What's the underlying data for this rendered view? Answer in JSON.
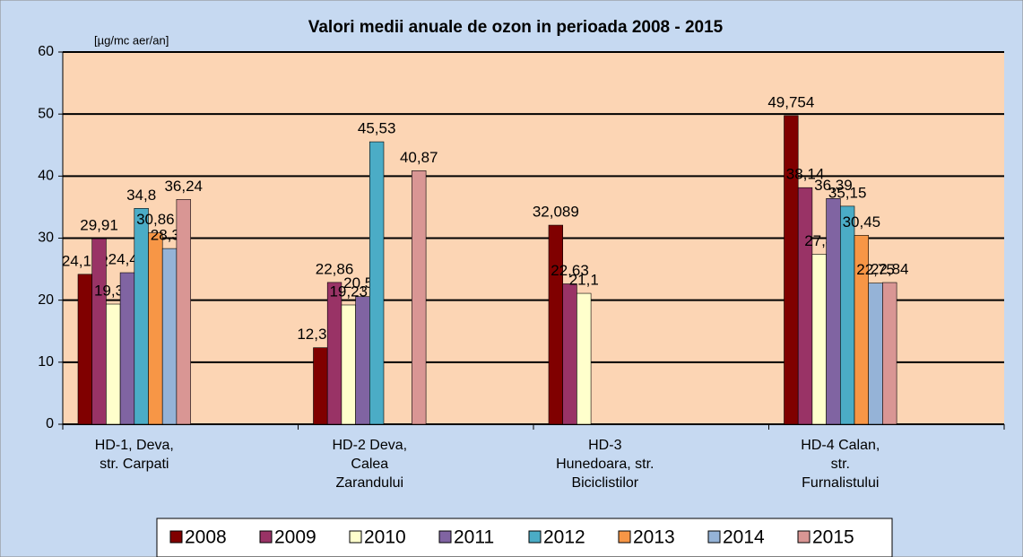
{
  "chart_data": {
    "type": "bar",
    "title": "Valori medii anuale de ozon in perioada 2008 - 2015",
    "y_label": "[µg/mc aer/an]",
    "categories": [
      [
        "HD-1, Deva,",
        "str. Carpati"
      ],
      [
        "HD-2 Deva,",
        "Calea",
        "Zarandului"
      ],
      [
        "HD-3",
        "Hunedoara, str.",
        "Biciclistilor"
      ],
      [
        "HD-4 Calan,",
        "str.",
        "Furnalistului"
      ]
    ],
    "series": [
      {
        "name": "2008",
        "color": "#800000",
        "values": [
          24.172,
          12.337,
          32.089,
          49.754
        ],
        "value_labels": [
          "24,172",
          "12,337",
          "32,089",
          "49,754"
        ]
      },
      {
        "name": "2009",
        "color": "#993366",
        "values": [
          29.91,
          22.86,
          22.63,
          38.14
        ],
        "value_labels": [
          "29,91",
          "22,86",
          "22,63",
          "38,14"
        ]
      },
      {
        "name": "2010",
        "color": "#ffffcc",
        "values": [
          19.37,
          19.23,
          21.1,
          27.4
        ],
        "value_labels": [
          "19,37",
          "19,23",
          "21,1",
          "27,4"
        ]
      },
      {
        "name": "2011",
        "color": "#8064a2",
        "values": [
          24.43,
          20.57,
          null,
          36.39
        ],
        "value_labels": [
          "24,43",
          "20,57",
          null,
          "36,39"
        ]
      },
      {
        "name": "2012",
        "color": "#4bacc6",
        "values": [
          34.8,
          45.53,
          null,
          35.15
        ],
        "value_labels": [
          "34,8",
          "45,53",
          null,
          "35,15"
        ]
      },
      {
        "name": "2013",
        "color": "#f79646",
        "values": [
          30.86,
          null,
          null,
          30.45
        ],
        "value_labels": [
          "30,86",
          null,
          null,
          "30,45"
        ]
      },
      {
        "name": "2014",
        "color": "#95b3d7",
        "values": [
          28.32,
          null,
          null,
          22.75
        ],
        "value_labels": [
          "28,32",
          null,
          null,
          "22,75"
        ]
      },
      {
        "name": "2015",
        "color": "#d99694",
        "values": [
          36.24,
          40.87,
          null,
          22.84
        ],
        "value_labels": [
          "36,24",
          "40,87",
          null,
          "22,84"
        ]
      }
    ],
    "ylim": [
      0,
      60
    ],
    "yticks": [
      0,
      10,
      20,
      30,
      40,
      50,
      60
    ],
    "grid": true,
    "legend": "bottom"
  }
}
